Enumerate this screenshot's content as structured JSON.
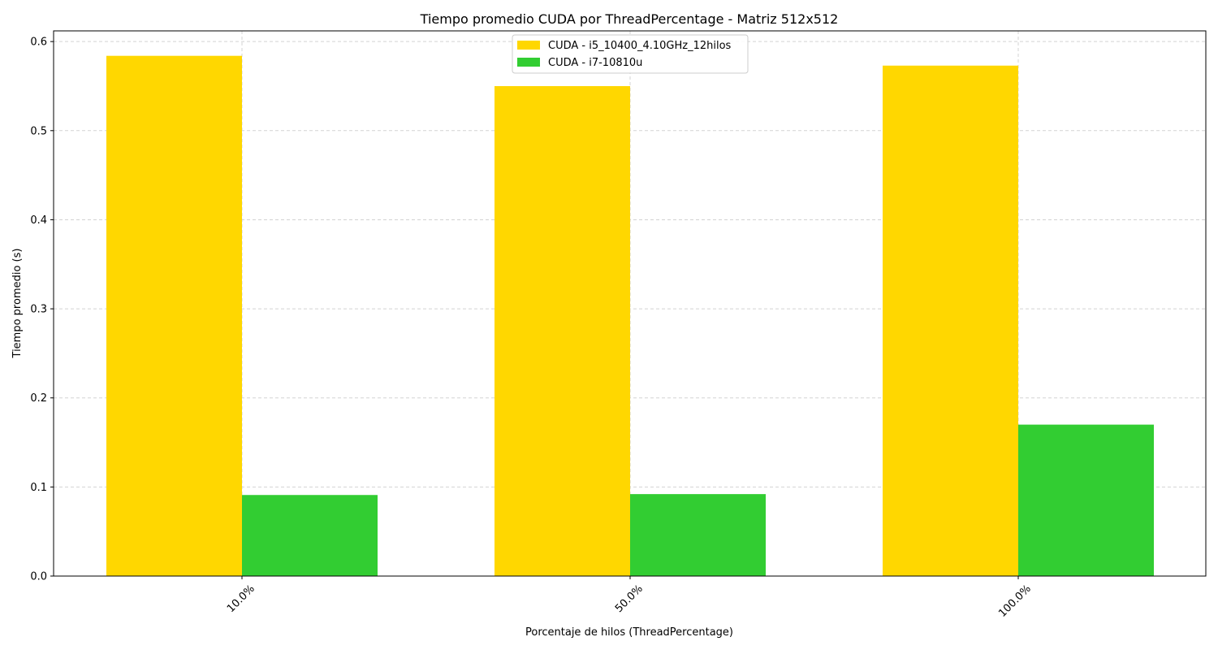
{
  "chart_data": {
    "type": "bar",
    "title": "Tiempo promedio CUDA por ThreadPercentage - Matriz 512x512",
    "xlabel": "Porcentaje de hilos (ThreadPercentage)",
    "ylabel": "Tiempo promedio (s)",
    "categories": [
      "10.0%",
      "50.0%",
      "100.0%"
    ],
    "series": [
      {
        "name": "CUDA - i5_10400_4.10GHz_12hilos",
        "color": "#FFD700",
        "values": [
          0.584,
          0.55,
          0.573
        ]
      },
      {
        "name": "CUDA - i7-10810u",
        "color": "#32CD32",
        "values": [
          0.091,
          0.092,
          0.17
        ]
      }
    ],
    "ylim": [
      0,
      0.612
    ],
    "yticks": [
      "0.0",
      "0.1",
      "0.2",
      "0.3",
      "0.4",
      "0.5",
      "0.6"
    ],
    "grid": true,
    "legend_position": "top-center"
  }
}
